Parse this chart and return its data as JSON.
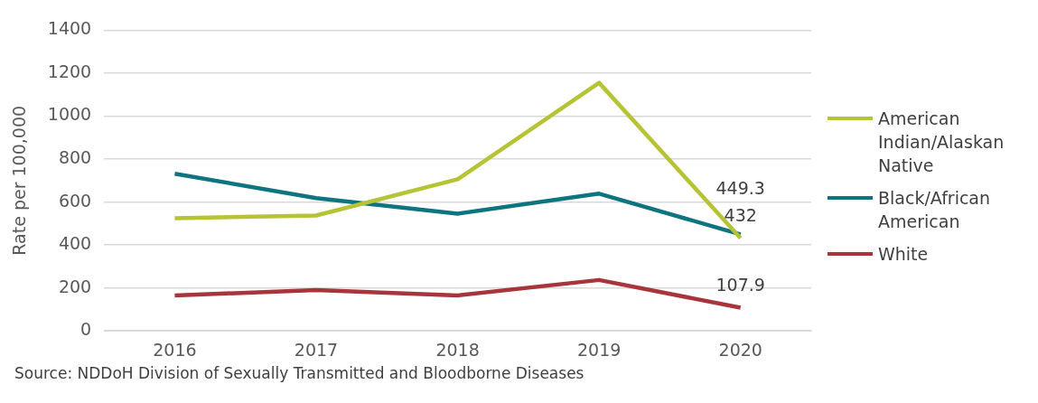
{
  "chart_data": {
    "type": "line",
    "ylabel": "Rate per 100,000",
    "categories": [
      "2016",
      "2017",
      "2018",
      "2019",
      "2020"
    ],
    "series": [
      {
        "name": "American Indian/Alaskan Native",
        "color": "#b5c334",
        "values": [
          525,
          537,
          706,
          1155,
          432
        ],
        "value_labels": [
          null,
          null,
          null,
          null,
          "432"
        ]
      },
      {
        "name": "Black/African American",
        "color": "#0e7480",
        "values": [
          732,
          618,
          546,
          639,
          449.3
        ],
        "value_labels": [
          null,
          null,
          null,
          null,
          "449.3"
        ]
      },
      {
        "name": "White",
        "color": "#a8343c",
        "values": [
          165,
          190,
          165,
          237,
          107.9
        ],
        "value_labels": [
          null,
          null,
          null,
          null,
          "107.9"
        ]
      }
    ],
    "ylim": [
      0,
      1400
    ],
    "yticks": [
      0,
      200,
      400,
      600,
      800,
      1000,
      1200,
      1400
    ],
    "grid": "y",
    "legend": "right",
    "marker": "none",
    "annotations": [
      "Source: NDDoH Division of Sexually Transmitted and Bloodborne Diseases"
    ]
  }
}
